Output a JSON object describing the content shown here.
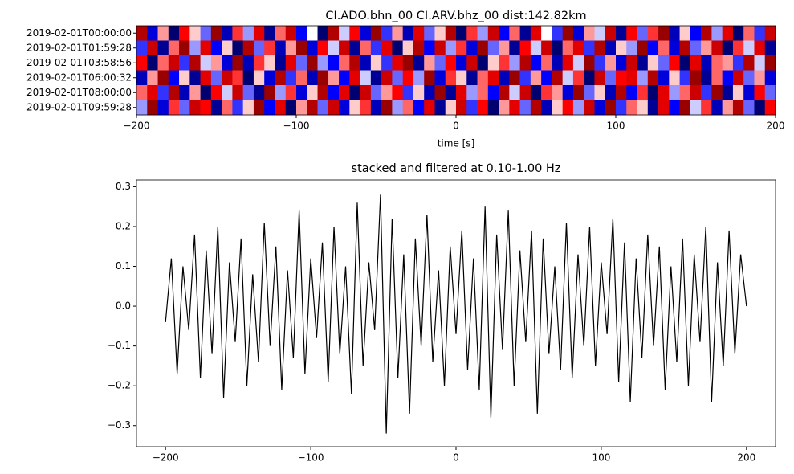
{
  "chart_data": [
    {
      "type": "heatmap",
      "title": "CI.ADO.bhn_00 CI.ARV.bhz_00  dist:142.82km",
      "xlabel": "time [s]",
      "colormap": "seismic",
      "clim": [
        -1,
        1
      ],
      "xlim": [
        -200,
        200
      ],
      "xticks": [
        {
          "value": -200,
          "label": "−200"
        },
        {
          "value": -100,
          "label": "−100"
        },
        0,
        100,
        200
      ],
      "rows": [
        "2019-02-01T00:00:00",
        "2019-02-01T01:59:28",
        "2019-02-01T03:58:56",
        "2019-02-01T06:00:32",
        "2019-02-01T08:00:00",
        "2019-02-01T09:59:28"
      ],
      "values": [
        [
          0.8,
          -0.6,
          0.2,
          -0.9,
          0.5,
          0.1,
          -0.3,
          0.9,
          -0.7,
          0.4,
          -0.2,
          0.6,
          -0.8,
          0.3,
          0.7,
          -0.5,
          0.0,
          -0.9,
          0.8,
          -0.1,
          0.5,
          -0.6,
          0.9,
          -0.4,
          0.2,
          -0.7,
          0.6,
          -0.3,
          0.1,
          0.8,
          -0.9,
          0.4,
          -0.2,
          0.7,
          -0.5,
          0.3,
          -0.8,
          0.6,
          0.0,
          -0.4,
          0.9,
          -0.6,
          0.2,
          -0.1,
          0.7,
          -0.8,
          0.5,
          -0.3,
          0.4,
          0.9,
          -0.7,
          0.1,
          -0.5,
          0.8,
          -0.2,
          0.6,
          -0.9,
          0.3,
          -0.4,
          0.7
        ],
        [
          -0.4,
          0.7,
          -0.8,
          0.3,
          0.9,
          -0.2,
          0.6,
          -0.5,
          0.1,
          -0.9,
          0.8,
          -0.3,
          0.4,
          -0.7,
          0.2,
          0.9,
          -0.6,
          0.5,
          -0.1,
          0.7,
          -0.8,
          0.3,
          -0.4,
          0.6,
          -0.9,
          0.1,
          0.8,
          -0.5,
          0.7,
          -0.2,
          0.4,
          -0.6,
          0.9,
          -0.3,
          0.2,
          -0.8,
          0.5,
          -0.1,
          0.7,
          -0.9,
          0.3,
          0.6,
          -0.4,
          0.8,
          -0.7,
          0.1,
          -0.2,
          0.9,
          -0.5,
          0.3,
          -0.6,
          0.8,
          -0.3,
          0.2,
          0.7,
          -0.9,
          0.4,
          -0.1,
          0.6,
          -0.8
        ],
        [
          0.5,
          -0.9,
          0.3,
          0.7,
          -0.4,
          0.8,
          -0.1,
          0.2,
          -0.6,
          0.9,
          -0.7,
          0.4,
          0.1,
          -0.8,
          0.6,
          -0.3,
          0.9,
          -0.2,
          -0.5,
          0.3,
          0.8,
          -0.7,
          0.1,
          -0.4,
          0.6,
          0.9,
          -0.8,
          0.2,
          -0.3,
          0.5,
          -0.6,
          0.7,
          -0.9,
          0.1,
          0.4,
          -0.2,
          0.8,
          -0.5,
          0.3,
          -0.7,
          0.6,
          -0.1,
          0.9,
          -0.4,
          0.2,
          -0.6,
          0.7,
          -0.8,
          0.1,
          -0.3,
          0.5,
          -0.9,
          0.6,
          -0.7,
          0.3,
          0.2,
          -0.4,
          0.8,
          -0.1,
          0.9
        ],
        [
          -0.7,
          0.2,
          0.9,
          -0.5,
          0.1,
          -0.8,
          0.6,
          -0.3,
          0.7,
          0.4,
          -0.9,
          0.1,
          -0.6,
          0.8,
          -0.4,
          0.3,
          -0.7,
          0.9,
          0.2,
          -0.5,
          0.6,
          -0.1,
          -0.8,
          0.7,
          -0.3,
          0.5,
          -0.2,
          0.9,
          -0.6,
          0.4,
          0.1,
          -0.8,
          0.3,
          0.6,
          -0.7,
          0.9,
          -0.4,
          0.2,
          -0.5,
          0.8,
          -0.1,
          0.4,
          -0.9,
          0.7,
          -0.3,
          0.5,
          0.6,
          -0.2,
          0.8,
          -0.6,
          0.1,
          -0.4,
          0.9,
          -0.8,
          0.3,
          -0.5,
          0.7,
          -0.3,
          0.2,
          -0.6
        ],
        [
          0.3,
          0.6,
          -0.4,
          0.8,
          -0.7,
          0.2,
          -0.9,
          0.5,
          -0.1,
          0.7,
          -0.3,
          -0.8,
          0.9,
          -0.2,
          0.4,
          -0.6,
          0.1,
          0.8,
          -0.5,
          0.6,
          -0.9,
          0.7,
          -0.3,
          0.2,
          0.5,
          -0.4,
          0.1,
          -0.7,
          0.9,
          -0.8,
          0.6,
          -0.2,
          0.3,
          -0.5,
          0.8,
          -0.1,
          0.7,
          -0.9,
          0.4,
          0.2,
          -0.6,
          0.9,
          -0.3,
          0.1,
          -0.7,
          0.8,
          -0.5,
          0.4,
          -0.9,
          0.6,
          -0.2,
          0.3,
          0.7,
          -0.4,
          0.9,
          -0.8,
          0.1,
          -0.6,
          0.5,
          -0.3
        ],
        [
          -0.2,
          0.9,
          -0.6,
          0.4,
          -0.3,
          0.7,
          0.5,
          -0.8,
          0.3,
          -0.4,
          0.1,
          0.9,
          -0.5,
          0.6,
          -0.9,
          0.2,
          0.8,
          -0.3,
          0.7,
          -0.6,
          0.1,
          0.4,
          -0.7,
          0.9,
          -0.2,
          0.3,
          -0.5,
          0.6,
          -0.8,
          0.1,
          0.7,
          -0.4,
          0.5,
          -0.9,
          0.2,
          0.6,
          -0.3,
          0.8,
          -0.7,
          0.1,
          0.5,
          -0.2,
          0.7,
          -0.6,
          0.9,
          -0.4,
          0.3,
          0.1,
          -0.8,
          0.6,
          -0.5,
          0.9,
          -0.1,
          0.4,
          -0.7,
          0.2,
          0.8,
          -0.3,
          -0.9,
          0.5
        ]
      ]
    },
    {
      "type": "line",
      "title": "stacked and filtered at 0.10-1.00 Hz",
      "color": "#000000",
      "xlim": [
        -220,
        220
      ],
      "xticks": [
        {
          "value": -200,
          "label": "−200"
        },
        {
          "value": -100,
          "label": "−100"
        },
        0,
        100,
        200
      ],
      "ylim": [
        -0.353,
        0.317
      ],
      "yticks": [
        {
          "value": -0.3,
          "label": "−0.3"
        },
        {
          "value": -0.2,
          "label": "−0.2"
        },
        {
          "value": -0.1,
          "label": "−0.1"
        },
        {
          "value": 0,
          "label": "0.0"
        },
        {
          "value": 0.1,
          "label": "0.1"
        },
        {
          "value": 0.2,
          "label": "0.2"
        },
        {
          "value": 0.3,
          "label": "0.3"
        }
      ],
      "x": [
        -200,
        -196,
        -192,
        -188,
        -184,
        -180,
        -176,
        -172,
        -168,
        -164,
        -160,
        -156,
        -152,
        -148,
        -144,
        -140,
        -136,
        -132,
        -128,
        -124,
        -120,
        -116,
        -112,
        -108,
        -104,
        -100,
        -96,
        -92,
        -88,
        -84,
        -80,
        -76,
        -72,
        -68,
        -64,
        -60,
        -56,
        -52,
        -48,
        -44,
        -40,
        -36,
        -32,
        -28,
        -24,
        -20,
        -16,
        -12,
        -8,
        -4,
        0,
        4,
        8,
        12,
        16,
        20,
        24,
        28,
        32,
        36,
        40,
        44,
        48,
        52,
        56,
        60,
        64,
        68,
        72,
        76,
        80,
        84,
        88,
        92,
        96,
        100,
        104,
        108,
        112,
        116,
        120,
        124,
        128,
        132,
        136,
        140,
        144,
        148,
        152,
        156,
        160,
        164,
        168,
        172,
        176,
        180,
        184,
        188,
        192,
        196,
        200
      ],
      "values": [
        -0.04,
        0.12,
        -0.17,
        0.1,
        -0.06,
        0.18,
        -0.18,
        0.14,
        -0.12,
        0.2,
        -0.23,
        0.11,
        -0.09,
        0.17,
        -0.2,
        0.08,
        -0.14,
        0.21,
        -0.1,
        0.15,
        -0.21,
        0.09,
        -0.13,
        0.24,
        -0.17,
        0.12,
        -0.08,
        0.16,
        -0.19,
        0.2,
        -0.12,
        0.1,
        -0.22,
        0.26,
        -0.15,
        0.11,
        -0.06,
        0.28,
        -0.32,
        0.22,
        -0.18,
        0.13,
        -0.27,
        0.17,
        -0.1,
        0.23,
        -0.14,
        0.09,
        -0.2,
        0.15,
        -0.07,
        0.19,
        -0.16,
        0.12,
        -0.21,
        0.25,
        -0.28,
        0.18,
        -0.11,
        0.24,
        -0.2,
        0.14,
        -0.09,
        0.19,
        -0.27,
        0.17,
        -0.12,
        0.1,
        -0.16,
        0.21,
        -0.18,
        0.13,
        -0.1,
        0.2,
        -0.15,
        0.11,
        -0.07,
        0.22,
        -0.19,
        0.16,
        -0.24,
        0.12,
        -0.13,
        0.18,
        -0.1,
        0.15,
        -0.21,
        0.1,
        -0.14,
        0.17,
        -0.2,
        0.13,
        -0.09,
        0.2,
        -0.24,
        0.11,
        -0.15,
        0.19,
        -0.12,
        0.13,
        0.0
      ]
    }
  ]
}
